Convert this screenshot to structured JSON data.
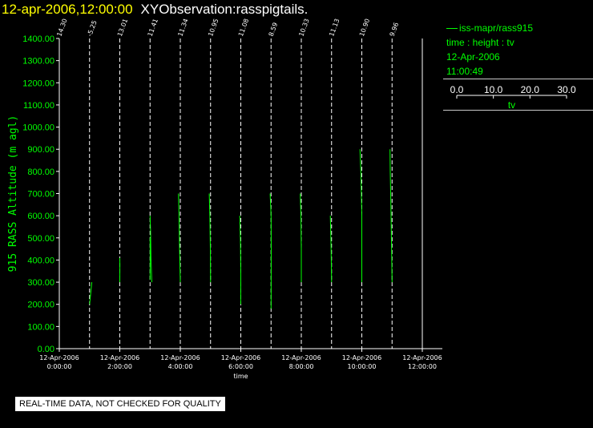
{
  "header": {
    "datetime": "12-apr-2006,12:00:00",
    "title": "XYObservation:rasspigtails."
  },
  "legend": {
    "series": "iss-mapr/rass915",
    "description": "time : height : tv",
    "date": "12-Apr-2006",
    "time": "11:00:49",
    "scale_ticks": [
      "0.0",
      "10.0",
      "20.0",
      "30.0"
    ],
    "scale_label": "tv",
    "line_color": "#00ff00"
  },
  "disclaimer": "REAL-TIME DATA, NOT CHECKED FOR QUALITY",
  "chart_data": {
    "type": "line",
    "xlabel": "time",
    "ylabel": "915 RASS Altitude (m agl)",
    "ylim": [
      0,
      1400
    ],
    "y_ticks": [
      "0.00",
      "100.00",
      "200.00",
      "300.00",
      "400.00",
      "500.00",
      "600.00",
      "700.00",
      "800.00",
      "900.00",
      "1000.00",
      "1100.00",
      "1200.00",
      "1300.00",
      "1400.00"
    ],
    "xlim": [
      "0:00",
      "12:00"
    ],
    "x_ticks": [
      {
        "time": "0:00",
        "date": "12-Apr-2006",
        "label": "0:00:00"
      },
      {
        "time": "2:00",
        "date": "12-Apr-2006",
        "label": "2:00:00"
      },
      {
        "time": "4:00",
        "date": "12-Apr-2006",
        "label": "4:00:00"
      },
      {
        "time": "6:00",
        "date": "12-Apr-2006",
        "label": "6:00:00"
      },
      {
        "time": "8:00",
        "date": "12-Apr-2006",
        "label": "8:00:00"
      },
      {
        "time": "10:00",
        "date": "12-Apr-2006",
        "label": "10:00:00"
      },
      {
        "time": "12:00",
        "date": "12-Apr-2006",
        "label": "12:00:00"
      }
    ],
    "grid": false,
    "observations": [
      {
        "time": "0:00",
        "label": "14.30",
        "profile": []
      },
      {
        "time": "1:00",
        "label": "-5.25",
        "profile": [
          [
            0,
            200
          ],
          [
            2.3,
            300
          ]
        ]
      },
      {
        "time": "2:00",
        "label": "13.01",
        "profile": [
          [
            0,
            300
          ],
          [
            0.1,
            380
          ],
          [
            0,
            410
          ]
        ]
      },
      {
        "time": "3:00",
        "label": "11.41",
        "profile": [
          [
            0,
            310
          ],
          [
            0.1,
            430
          ],
          [
            0,
            500
          ]
        ]
      },
      {
        "time": "3:00",
        "label": "",
        "profile": [
          [
            0,
            600
          ],
          [
            0.5,
            530
          ],
          [
            0.9,
            410
          ],
          [
            1.8,
            300
          ]
        ]
      },
      {
        "time": "4:00",
        "label": "11.34",
        "profile": [
          [
            -1.8,
            700
          ],
          [
            -1.3,
            600
          ],
          [
            -0.7,
            450
          ],
          [
            0,
            300
          ]
        ]
      },
      {
        "time": "5:00",
        "label": "10.95",
        "profile": [
          [
            -1.3,
            700
          ],
          [
            -0.7,
            600
          ],
          [
            -0.2,
            450
          ],
          [
            0,
            300
          ]
        ]
      },
      {
        "time": "6:00",
        "label": "11.08",
        "profile": [
          [
            -1.0,
            600
          ],
          [
            -0.3,
            480
          ],
          [
            0,
            330
          ],
          [
            -0.1,
            200
          ]
        ]
      },
      {
        "time": "7:00",
        "label": "8.59",
        "profile": [
          [
            -0.9,
            700
          ],
          [
            0,
            600
          ],
          [
            0.2,
            450
          ],
          [
            0.1,
            330
          ],
          [
            0,
            180
          ]
        ]
      },
      {
        "time": "8:00",
        "label": "10.33",
        "profile": [
          [
            -1.0,
            700
          ],
          [
            -0.4,
            600
          ],
          [
            0,
            450
          ],
          [
            0,
            300
          ]
        ]
      },
      {
        "time": "9:00",
        "label": "11.13",
        "profile": [
          [
            -1.2,
            600
          ],
          [
            -0.4,
            450
          ],
          [
            0,
            300
          ]
        ]
      },
      {
        "time": "10:00",
        "label": "10.90",
        "profile": [
          [
            -1.8,
            900
          ],
          [
            -0.8,
            780
          ],
          [
            0,
            600
          ],
          [
            0,
            300
          ]
        ]
      },
      {
        "time": "11:00",
        "label": "9.96",
        "profile": [
          [
            -2.0,
            900
          ],
          [
            -1.8,
            800
          ],
          [
            -1.0,
            600
          ],
          [
            0,
            300
          ]
        ]
      }
    ]
  }
}
